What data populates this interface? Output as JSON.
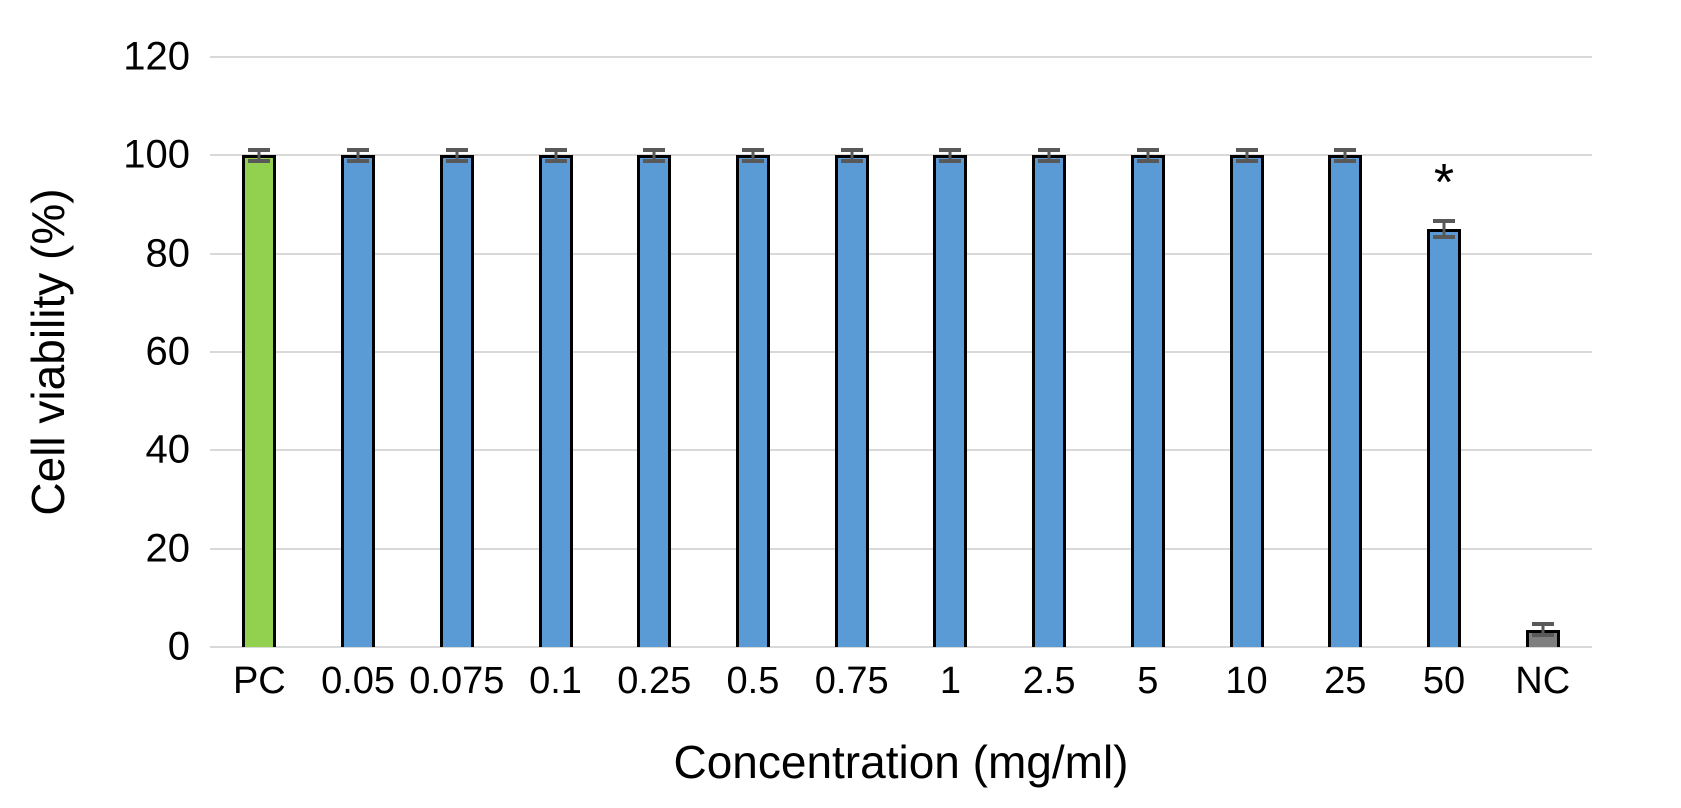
{
  "figure": {
    "background": "#FFFFFF"
  },
  "chart_data": {
    "type": "bar",
    "title": "",
    "xlabel": "Concentration (mg/ml)",
    "ylabel": "Cell viability (%)",
    "ylim": [
      0,
      120
    ],
    "yticks": [
      0,
      20,
      40,
      60,
      80,
      100,
      120
    ],
    "grid": "horizontal",
    "legend": "none",
    "categories": [
      "PC",
      "0.05",
      "0.075",
      "0.1",
      "0.25",
      "0.5",
      "0.75",
      "1",
      "2.5",
      "5",
      "10",
      "25",
      "50",
      "NC"
    ],
    "values": [
      100,
      100,
      100,
      100,
      100,
      100,
      100,
      100,
      100,
      100,
      100,
      100,
      85,
      3.5
    ],
    "errors": [
      1.5,
      1.5,
      1.5,
      1.5,
      1.5,
      1.5,
      1.5,
      1.5,
      1.5,
      1.5,
      1.5,
      1.5,
      2,
      1.5
    ],
    "bar_colors": [
      "#92D050",
      "#5B9BD5",
      "#5B9BD5",
      "#5B9BD5",
      "#5B9BD5",
      "#5B9BD5",
      "#5B9BD5",
      "#5B9BD5",
      "#5B9BD5",
      "#5B9BD5",
      "#5B9BD5",
      "#5B9BD5",
      "#5B9BD5",
      "#7F7F7F"
    ],
    "significance": {
      "category": "50",
      "symbol": "*"
    },
    "colors": {
      "gridline": "#D9D9D9",
      "error_bar": "#595959",
      "bar_outline": "#000000",
      "text": "#000000"
    }
  }
}
